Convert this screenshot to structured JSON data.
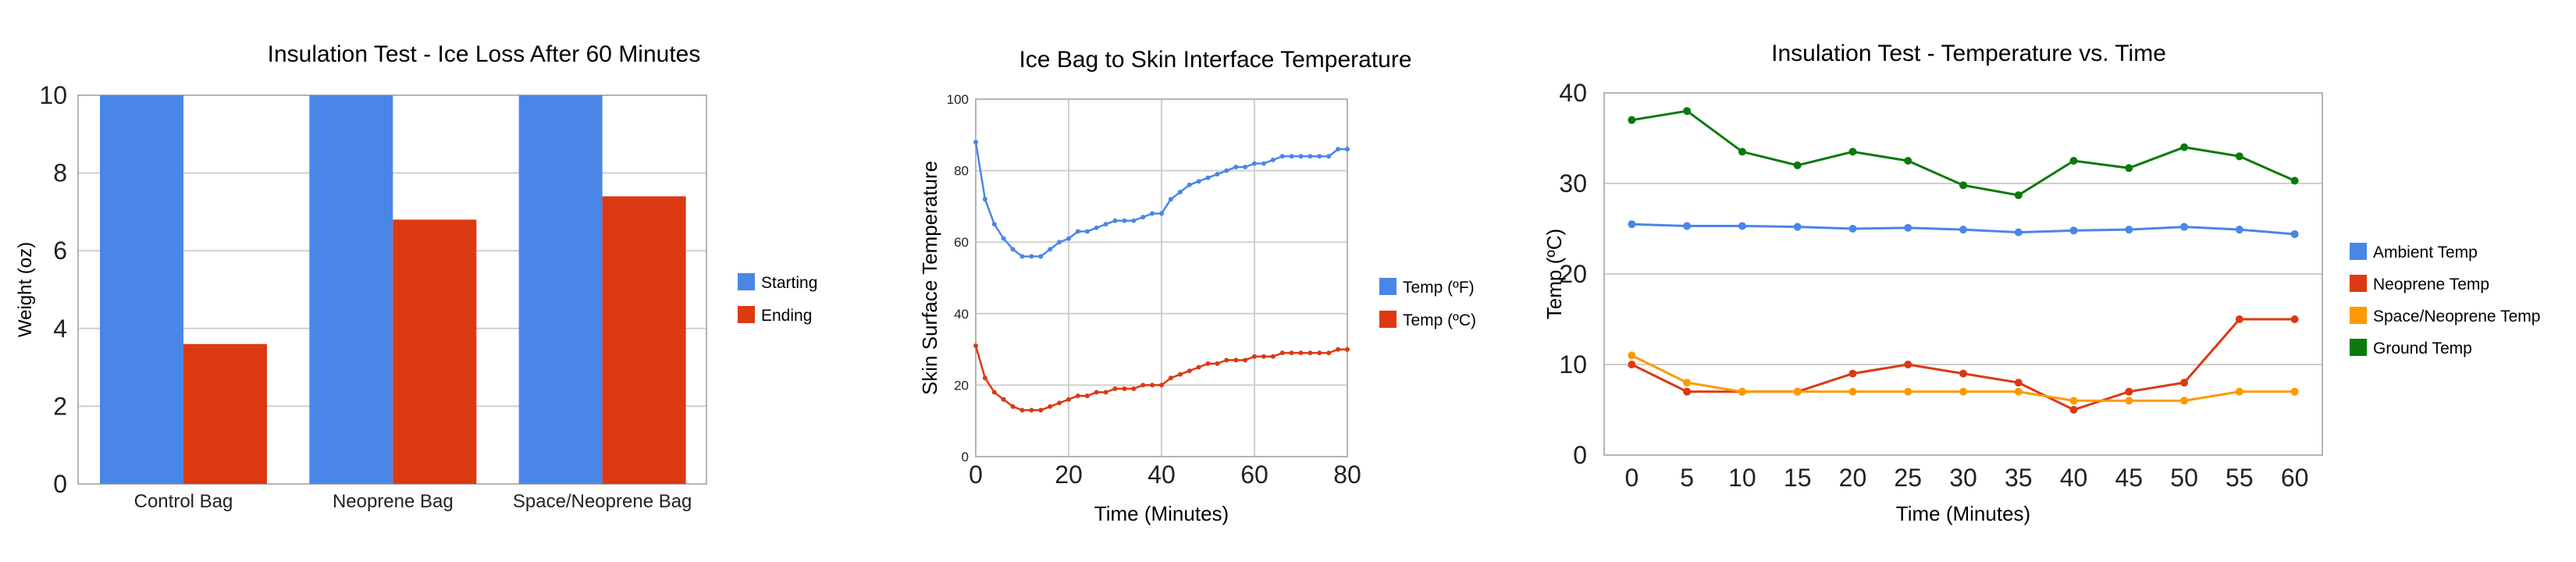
{
  "chart_data": [
    {
      "type": "bar",
      "title": "Insulation Test - Ice Loss After 60 Minutes",
      "xlabel": "",
      "ylabel": "Weight (oz)",
      "ylim": [
        0,
        10
      ],
      "yticks": [
        0,
        2,
        4,
        6,
        8,
        10
      ],
      "categories": [
        "Control Bag",
        "Neoprene Bag",
        "Space/Neoprene Bag"
      ],
      "series": [
        {
          "name": "Starting",
          "color": "#4a86e8",
          "values": [
            10,
            10,
            10
          ]
        },
        {
          "name": "Ending",
          "color": "#dc3912",
          "values": [
            3.6,
            6.8,
            7.4
          ]
        }
      ],
      "legend": "right",
      "grid": true
    },
    {
      "type": "line",
      "title": "Ice Bag to Skin Interface Temperature",
      "xlabel": "Time (Minutes)",
      "ylabel": "Skin Surface Temperature",
      "xlim": [
        0,
        80
      ],
      "ylim": [
        0,
        100
      ],
      "xticks": [
        0,
        20,
        40,
        60,
        80
      ],
      "yticks": [
        0,
        20,
        40,
        60,
        80,
        100
      ],
      "x": [
        0,
        2,
        4,
        6,
        8,
        10,
        12,
        14,
        16,
        18,
        20,
        22,
        24,
        26,
        28,
        30,
        32,
        34,
        36,
        38,
        40,
        42,
        44,
        46,
        48,
        50,
        52,
        54,
        56,
        58,
        60,
        62,
        64,
        66,
        68,
        70,
        72,
        74,
        76,
        78,
        80
      ],
      "series": [
        {
          "name": "Temp (ºF)",
          "color": "#4a86e8",
          "values": [
            88,
            72,
            65,
            61,
            58,
            56,
            56,
            56,
            58,
            60,
            61,
            63,
            63,
            64,
            65,
            66,
            66,
            66,
            67,
            68,
            68,
            72,
            74,
            76,
            77,
            78,
            79,
            80,
            81,
            81,
            82,
            82,
            83,
            84,
            84,
            84,
            84,
            84,
            84,
            86,
            86
          ]
        },
        {
          "name": "Temp (ºC)",
          "color": "#dc3912",
          "values": [
            31,
            22,
            18,
            16,
            14,
            13,
            13,
            13,
            14,
            15,
            16,
            17,
            17,
            18,
            18,
            19,
            19,
            19,
            20,
            20,
            20,
            22,
            23,
            24,
            25,
            26,
            26,
            27,
            27,
            27,
            28,
            28,
            28,
            29,
            29,
            29,
            29,
            29,
            29,
            30,
            30
          ]
        }
      ],
      "legend": "right",
      "grid": true
    },
    {
      "type": "line",
      "title": "Insulation Test - Temperature vs. Time",
      "xlabel": "Time (Minutes)",
      "ylabel": "Temp (ºC)",
      "ylim": [
        0,
        40
      ],
      "yticks": [
        0,
        10,
        20,
        30,
        40
      ],
      "categories": [
        "0",
        "5",
        "10",
        "15",
        "20",
        "25",
        "30",
        "35",
        "40",
        "45",
        "50",
        "55",
        "60"
      ],
      "series": [
        {
          "name": "Ambient Temp",
          "color": "#4a86e8",
          "values": [
            25.5,
            25.3,
            25.3,
            25.2,
            25.0,
            25.1,
            24.9,
            24.6,
            24.8,
            24.9,
            25.2,
            24.9,
            24.4
          ]
        },
        {
          "name": "Neoprene Temp",
          "color": "#dc3912",
          "values": [
            10,
            7,
            7,
            7,
            9,
            10,
            9,
            8,
            5,
            7,
            8,
            15,
            15
          ]
        },
        {
          "name": "Space/Neoprene Temp",
          "color": "#ff9900",
          "values": [
            11,
            8,
            7,
            7,
            7,
            7,
            7,
            7,
            6,
            6,
            6,
            7,
            7
          ]
        },
        {
          "name": "Ground Temp",
          "color": "#0a7a0a",
          "values": [
            37,
            38,
            33.5,
            32,
            33.5,
            32.5,
            29.8,
            28.7,
            32.5,
            31.7,
            34,
            33,
            30.3
          ]
        }
      ],
      "legend": "right",
      "grid": true
    }
  ]
}
